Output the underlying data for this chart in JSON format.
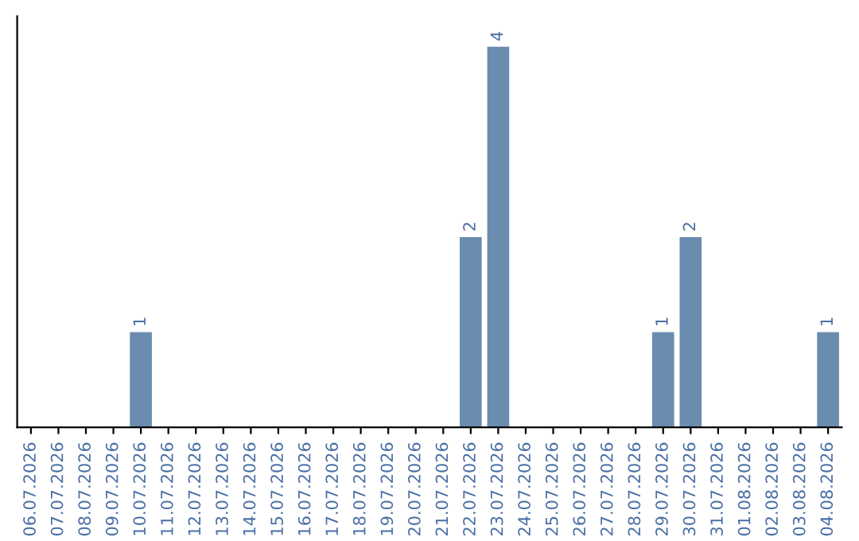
{
  "chart_data": {
    "type": "bar",
    "categories": [
      "06.07.2026",
      "07.07.2026",
      "08.07.2026",
      "09.07.2026",
      "10.07.2026",
      "11.07.2026",
      "12.07.2026",
      "13.07.2026",
      "14.07.2026",
      "15.07.2026",
      "16.07.2026",
      "17.07.2026",
      "18.07.2026",
      "19.07.2026",
      "20.07.2026",
      "21.07.2026",
      "22.07.2026",
      "23.07.2026",
      "24.07.2026",
      "25.07.2026",
      "26.07.2026",
      "27.07.2026",
      "28.07.2026",
      "29.07.2026",
      "30.07.2026",
      "31.07.2026",
      "01.08.2026",
      "02.08.2026",
      "03.08.2026",
      "04.08.2026"
    ],
    "values": [
      0,
      0,
      0,
      0,
      1,
      0,
      0,
      0,
      0,
      0,
      0,
      0,
      0,
      0,
      0,
      0,
      2,
      4,
      0,
      0,
      0,
      0,
      0,
      1,
      2,
      0,
      0,
      0,
      0,
      1
    ],
    "value_labels": [
      null,
      null,
      null,
      null,
      "1",
      null,
      null,
      null,
      null,
      null,
      null,
      null,
      null,
      null,
      null,
      null,
      "2",
      "4",
      null,
      null,
      null,
      null,
      null,
      "1",
      "2",
      null,
      null,
      null,
      null,
      "1"
    ],
    "color": "#6a8caf",
    "tick_labels": "x",
    "grid": false
  }
}
